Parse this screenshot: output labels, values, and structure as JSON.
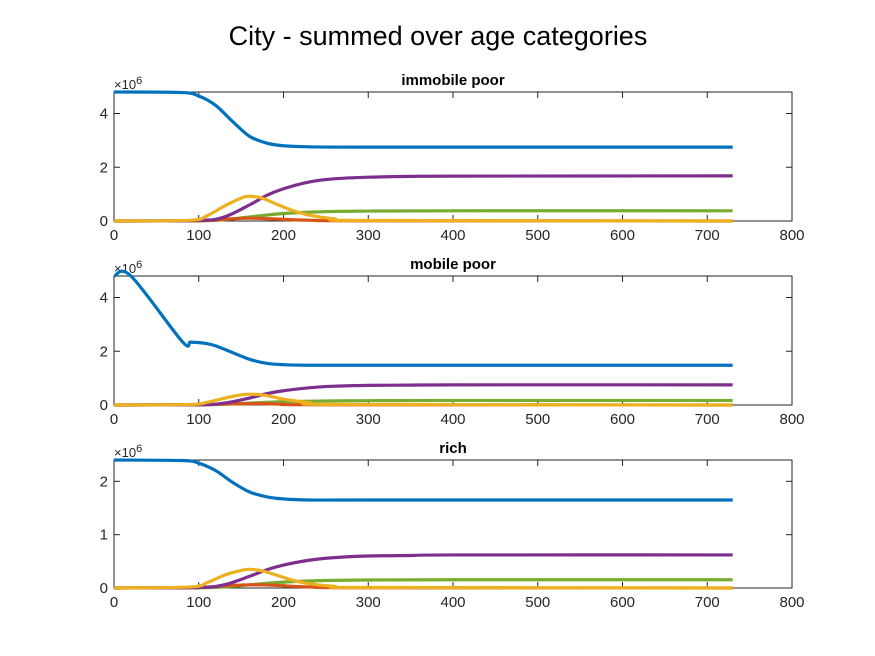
{
  "figure": {
    "title": "City - summed over age categories"
  },
  "colors": {
    "blue": "#0072BD",
    "orange": "#D95319",
    "yellow": "#EDB120",
    "purple": "#7E2F8E",
    "green": "#77AC30"
  },
  "chart_data": [
    {
      "type": "line",
      "title": "immobile poor",
      "xlim": [
        0,
        800
      ],
      "ylim": [
        0,
        4.8
      ],
      "xticks": [
        0,
        100,
        200,
        300,
        400,
        500,
        600,
        700,
        800
      ],
      "yticks": [
        0,
        2,
        4
      ],
      "y_exponent": "×10",
      "y_exponent_power": "6",
      "series": [
        {
          "color": "blue",
          "x": [
            0,
            80,
            100,
            120,
            140,
            160,
            180,
            200,
            230,
            300,
            730
          ],
          "values": [
            4.8,
            4.78,
            4.65,
            4.3,
            3.7,
            3.15,
            2.9,
            2.8,
            2.76,
            2.75,
            2.75
          ]
        },
        {
          "color": "orange",
          "x": [
            0,
            100,
            130,
            150,
            170,
            200,
            230,
            300,
            730
          ],
          "values": [
            0,
            0.01,
            0.06,
            0.1,
            0.1,
            0.06,
            0.03,
            0.01,
            0
          ]
        },
        {
          "color": "yellow",
          "x": [
            0,
            90,
            110,
            130,
            150,
            160,
            175,
            190,
            210,
            230,
            260,
            300,
            730
          ],
          "values": [
            0,
            0.03,
            0.2,
            0.55,
            0.85,
            0.92,
            0.85,
            0.65,
            0.4,
            0.22,
            0.08,
            0.02,
            0
          ]
        },
        {
          "color": "purple",
          "x": [
            0,
            100,
            130,
            160,
            180,
            200,
            230,
            260,
            300,
            350,
            400,
            730
          ],
          "values": [
            0,
            0.02,
            0.15,
            0.6,
            0.95,
            1.2,
            1.45,
            1.57,
            1.63,
            1.66,
            1.67,
            1.68
          ]
        },
        {
          "color": "green",
          "x": [
            0,
            100,
            130,
            160,
            200,
            250,
            300,
            400,
            730
          ],
          "values": [
            0,
            0.01,
            0.05,
            0.15,
            0.28,
            0.35,
            0.37,
            0.38,
            0.38
          ]
        }
      ]
    },
    {
      "type": "line",
      "title": "mobile poor",
      "xlim": [
        0,
        800
      ],
      "ylim": [
        0,
        4.8
      ],
      "xticks": [
        0,
        100,
        200,
        300,
        400,
        500,
        600,
        700,
        800
      ],
      "yticks": [
        0,
        2,
        4
      ],
      "y_exponent": "×10",
      "y_exponent_power": "6",
      "series": [
        {
          "color": "blue",
          "x": [
            0,
            20,
            80,
            90,
            100,
            110,
            120,
            140,
            160,
            180,
            200,
            230,
            300,
            730
          ],
          "values": [
            4.8,
            4.8,
            2.38,
            2.34,
            2.32,
            2.28,
            2.2,
            1.95,
            1.7,
            1.55,
            1.5,
            1.48,
            1.48,
            1.48
          ]
        },
        {
          "color": "orange",
          "x": [
            0,
            100,
            140,
            170,
            200,
            250,
            730
          ],
          "values": [
            0,
            0.01,
            0.04,
            0.05,
            0.03,
            0.01,
            0
          ]
        },
        {
          "color": "yellow",
          "x": [
            0,
            90,
            110,
            130,
            150,
            165,
            180,
            200,
            230,
            270,
            730
          ],
          "values": [
            0,
            0.02,
            0.1,
            0.25,
            0.38,
            0.4,
            0.35,
            0.22,
            0.09,
            0.02,
            0
          ]
        },
        {
          "color": "purple",
          "x": [
            0,
            100,
            130,
            160,
            180,
            200,
            230,
            260,
            300,
            350,
            400,
            730
          ],
          "values": [
            0,
            0.01,
            0.07,
            0.26,
            0.42,
            0.53,
            0.64,
            0.7,
            0.73,
            0.74,
            0.75,
            0.75
          ]
        },
        {
          "color": "green",
          "x": [
            0,
            100,
            130,
            160,
            200,
            250,
            300,
            400,
            730
          ],
          "values": [
            0,
            0.01,
            0.03,
            0.07,
            0.12,
            0.15,
            0.16,
            0.17,
            0.17
          ]
        }
      ]
    },
    {
      "type": "line",
      "title": "rich",
      "xlim": [
        0,
        800
      ],
      "ylim": [
        0,
        2.4
      ],
      "xticks": [
        0,
        100,
        200,
        300,
        400,
        500,
        600,
        700,
        800
      ],
      "yticks": [
        0,
        1,
        2
      ],
      "y_exponent": "×10",
      "y_exponent_power": "6",
      "series": [
        {
          "color": "blue",
          "x": [
            0,
            80,
            100,
            120,
            140,
            160,
            180,
            200,
            230,
            300,
            730
          ],
          "values": [
            2.4,
            2.39,
            2.34,
            2.2,
            1.98,
            1.8,
            1.71,
            1.67,
            1.65,
            1.65,
            1.65
          ]
        },
        {
          "color": "orange",
          "x": [
            0,
            100,
            130,
            160,
            190,
            230,
            300,
            730
          ],
          "values": [
            0,
            0.01,
            0.04,
            0.06,
            0.05,
            0.02,
            0.005,
            0
          ]
        },
        {
          "color": "yellow",
          "x": [
            0,
            90,
            110,
            130,
            150,
            160,
            175,
            190,
            210,
            230,
            260,
            300,
            730
          ],
          "values": [
            0,
            0.02,
            0.1,
            0.24,
            0.33,
            0.35,
            0.32,
            0.25,
            0.15,
            0.08,
            0.03,
            0.01,
            0
          ]
        },
        {
          "color": "purple",
          "x": [
            0,
            100,
            130,
            160,
            180,
            200,
            230,
            260,
            300,
            350,
            400,
            730
          ],
          "values": [
            0,
            0.01,
            0.06,
            0.22,
            0.34,
            0.43,
            0.52,
            0.57,
            0.6,
            0.61,
            0.62,
            0.62
          ]
        },
        {
          "color": "green",
          "x": [
            0,
            100,
            130,
            160,
            200,
            250,
            300,
            400,
            730
          ],
          "values": [
            0,
            0.005,
            0.02,
            0.06,
            0.11,
            0.14,
            0.15,
            0.155,
            0.155
          ]
        }
      ]
    }
  ]
}
